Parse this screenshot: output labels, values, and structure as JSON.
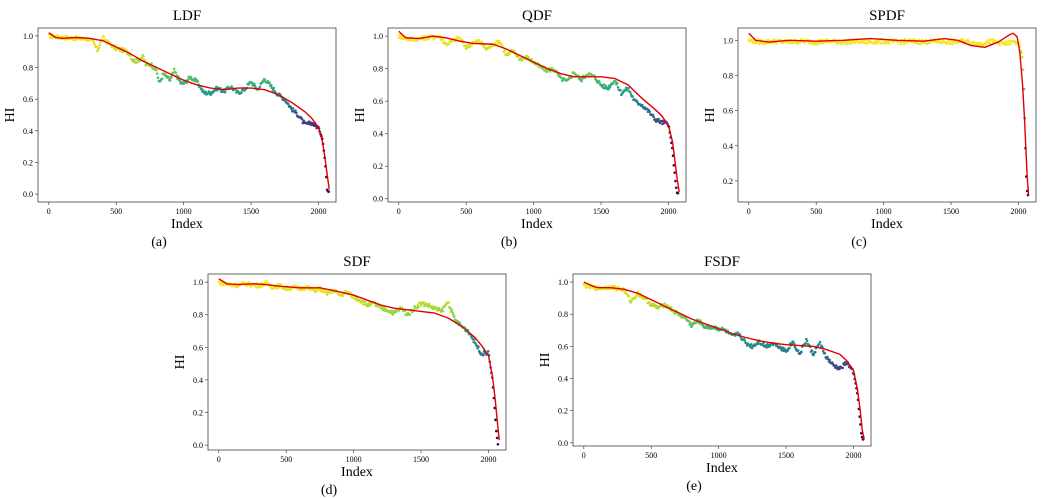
{
  "chart_data": [
    {
      "type": "scatter",
      "title": "LDF",
      "caption": "(a)",
      "xlabel": "Index",
      "ylabel": "HI",
      "xlim": [
        -80,
        2130
      ],
      "ylim": [
        -0.05,
        1.05
      ],
      "xticks": [
        0,
        500,
        1000,
        1500,
        2000
      ],
      "yticks": [
        0.0,
        0.2,
        0.4,
        0.6,
        0.8,
        1.0
      ],
      "fit_curve": [
        [
          0,
          1.02
        ],
        [
          50,
          0.99
        ],
        [
          100,
          0.985
        ],
        [
          200,
          0.99
        ],
        [
          300,
          0.985
        ],
        [
          400,
          0.97
        ],
        [
          500,
          0.93
        ],
        [
          600,
          0.89
        ],
        [
          700,
          0.84
        ],
        [
          800,
          0.8
        ],
        [
          900,
          0.76
        ],
        [
          1000,
          0.72
        ],
        [
          1100,
          0.69
        ],
        [
          1200,
          0.67
        ],
        [
          1300,
          0.66
        ],
        [
          1400,
          0.67
        ],
        [
          1500,
          0.67
        ],
        [
          1600,
          0.66
        ],
        [
          1700,
          0.63
        ],
        [
          1800,
          0.58
        ],
        [
          1900,
          0.52
        ],
        [
          1950,
          0.48
        ],
        [
          2000,
          0.42
        ],
        [
          2030,
          0.33
        ],
        [
          2050,
          0.22
        ],
        [
          2065,
          0.12
        ],
        [
          2080,
          0.03
        ]
      ],
      "data_points": [
        [
          0,
          1.0
        ],
        [
          100,
          0.99
        ],
        [
          200,
          0.985
        ],
        [
          300,
          0.98
        ],
        [
          330,
          0.96
        ],
        [
          360,
          0.91
        ],
        [
          400,
          0.99
        ],
        [
          450,
          0.95
        ],
        [
          500,
          0.92
        ],
        [
          550,
          0.91
        ],
        [
          600,
          0.89
        ],
        [
          620,
          0.85
        ],
        [
          650,
          0.84
        ],
        [
          700,
          0.87
        ],
        [
          720,
          0.82
        ],
        [
          760,
          0.82
        ],
        [
          800,
          0.78
        ],
        [
          820,
          0.7
        ],
        [
          850,
          0.76
        ],
        [
          900,
          0.72
        ],
        [
          930,
          0.78
        ],
        [
          980,
          0.7
        ],
        [
          1000,
          0.7
        ],
        [
          1050,
          0.74
        ],
        [
          1100,
          0.71
        ],
        [
          1150,
          0.64
        ],
        [
          1200,
          0.64
        ],
        [
          1250,
          0.67
        ],
        [
          1300,
          0.65
        ],
        [
          1350,
          0.68
        ],
        [
          1400,
          0.64
        ],
        [
          1450,
          0.66
        ],
        [
          1500,
          0.71
        ],
        [
          1550,
          0.66
        ],
        [
          1600,
          0.73
        ],
        [
          1650,
          0.68
        ],
        [
          1700,
          0.63
        ],
        [
          1750,
          0.6
        ],
        [
          1800,
          0.54
        ],
        [
          1850,
          0.5
        ],
        [
          1900,
          0.44
        ],
        [
          1950,
          0.45
        ],
        [
          2000,
          0.42
        ],
        [
          2030,
          0.35
        ],
        [
          2050,
          0.2
        ],
        [
          2060,
          0.08
        ],
        [
          2065,
          0.02
        ],
        [
          2080,
          0.02
        ]
      ]
    },
    {
      "type": "scatter",
      "title": "QDF",
      "caption": "(b)",
      "xlabel": "Index",
      "ylabel": "HI",
      "xlim": [
        -80,
        2130
      ],
      "ylim": [
        -0.02,
        1.05
      ],
      "xticks": [
        0,
        500,
        1000,
        1500,
        2000
      ],
      "yticks": [
        0.0,
        0.2,
        0.4,
        0.6,
        0.8,
        1.0
      ],
      "fit_curve": [
        [
          0,
          1.03
        ],
        [
          50,
          0.99
        ],
        [
          150,
          0.985
        ],
        [
          250,
          1.0
        ],
        [
          350,
          0.99
        ],
        [
          450,
          0.97
        ],
        [
          550,
          0.955
        ],
        [
          700,
          0.95
        ],
        [
          800,
          0.92
        ],
        [
          900,
          0.88
        ],
        [
          1000,
          0.84
        ],
        [
          1100,
          0.8
        ],
        [
          1200,
          0.77
        ],
        [
          1300,
          0.75
        ],
        [
          1400,
          0.75
        ],
        [
          1500,
          0.75
        ],
        [
          1600,
          0.74
        ],
        [
          1700,
          0.7
        ],
        [
          1800,
          0.62
        ],
        [
          1900,
          0.55
        ],
        [
          1950,
          0.51
        ],
        [
          2000,
          0.45
        ],
        [
          2030,
          0.35
        ],
        [
          2050,
          0.22
        ],
        [
          2065,
          0.12
        ],
        [
          2080,
          0.04
        ]
      ],
      "data_points": [
        [
          0,
          1.0
        ],
        [
          100,
          0.98
        ],
        [
          200,
          0.99
        ],
        [
          300,
          1.0
        ],
        [
          350,
          0.95
        ],
        [
          400,
          0.97
        ],
        [
          450,
          0.99
        ],
        [
          500,
          0.93
        ],
        [
          550,
          0.96
        ],
        [
          600,
          0.97
        ],
        [
          650,
          0.92
        ],
        [
          700,
          0.95
        ],
        [
          750,
          0.97
        ],
        [
          800,
          0.88
        ],
        [
          850,
          0.91
        ],
        [
          900,
          0.86
        ],
        [
          950,
          0.87
        ],
        [
          1000,
          0.84
        ],
        [
          1050,
          0.81
        ],
        [
          1100,
          0.79
        ],
        [
          1150,
          0.8
        ],
        [
          1200,
          0.74
        ],
        [
          1250,
          0.72
        ],
        [
          1300,
          0.78
        ],
        [
          1350,
          0.73
        ],
        [
          1400,
          0.77
        ],
        [
          1450,
          0.75
        ],
        [
          1500,
          0.7
        ],
        [
          1550,
          0.68
        ],
        [
          1600,
          0.73
        ],
        [
          1650,
          0.65
        ],
        [
          1700,
          0.68
        ],
        [
          1750,
          0.6
        ],
        [
          1800,
          0.58
        ],
        [
          1850,
          0.54
        ],
        [
          1900,
          0.49
        ],
        [
          1950,
          0.47
        ],
        [
          2000,
          0.46
        ],
        [
          2030,
          0.3
        ],
        [
          2050,
          0.12
        ],
        [
          2060,
          0.05
        ],
        [
          2070,
          0.03
        ]
      ]
    },
    {
      "type": "scatter",
      "title": "SPDF",
      "caption": "(c)",
      "xlabel": "Index",
      "ylabel": "HI",
      "xlim": [
        -80,
        2130
      ],
      "ylim": [
        0.08,
        1.07
      ],
      "xticks": [
        0,
        500,
        1000,
        1500,
        2000
      ],
      "yticks": [
        0.2,
        0.4,
        0.6,
        0.8,
        1.0
      ],
      "fit_curve": [
        [
          0,
          1.04
        ],
        [
          50,
          1.0
        ],
        [
          150,
          0.99
        ],
        [
          300,
          1.0
        ],
        [
          500,
          0.995
        ],
        [
          700,
          1.0
        ],
        [
          900,
          1.01
        ],
        [
          1100,
          1.0
        ],
        [
          1300,
          0.995
        ],
        [
          1450,
          1.01
        ],
        [
          1550,
          1.0
        ],
        [
          1650,
          0.97
        ],
        [
          1750,
          0.96
        ],
        [
          1850,
          0.99
        ],
        [
          1930,
          1.03
        ],
        [
          1960,
          1.04
        ],
        [
          1990,
          1.02
        ],
        [
          2010,
          0.93
        ],
        [
          2030,
          0.75
        ],
        [
          2045,
          0.55
        ],
        [
          2055,
          0.38
        ],
        [
          2065,
          0.22
        ],
        [
          2075,
          0.12
        ]
      ],
      "data_points": [
        [
          0,
          1.0
        ],
        [
          100,
          0.99
        ],
        [
          200,
          0.995
        ],
        [
          300,
          0.99
        ],
        [
          400,
          0.995
        ],
        [
          500,
          0.99
        ],
        [
          600,
          0.995
        ],
        [
          700,
          0.99
        ],
        [
          800,
          0.995
        ],
        [
          900,
          0.99
        ],
        [
          1000,
          0.995
        ],
        [
          1100,
          0.99
        ],
        [
          1200,
          0.995
        ],
        [
          1300,
          0.99
        ],
        [
          1400,
          0.995
        ],
        [
          1500,
          0.99
        ],
        [
          1600,
          0.995
        ],
        [
          1700,
          0.98
        ],
        [
          1800,
          0.995
        ],
        [
          1900,
          0.98
        ],
        [
          1950,
          0.99
        ],
        [
          2000,
          0.99
        ],
        [
          2030,
          0.9
        ],
        [
          2040,
          0.72
        ],
        [
          2050,
          0.45
        ],
        [
          2055,
          0.3
        ],
        [
          2060,
          0.17
        ],
        [
          2065,
          0.13
        ],
        [
          2070,
          0.12
        ]
      ]
    },
    {
      "type": "scatter",
      "title": "SDF",
      "caption": "(d)",
      "xlabel": "Index",
      "ylabel": "HI",
      "xlim": [
        -80,
        2130
      ],
      "ylim": [
        -0.03,
        1.05
      ],
      "xticks": [
        0,
        500,
        1000,
        1500,
        2000
      ],
      "yticks": [
        0.0,
        0.2,
        0.4,
        0.6,
        0.8,
        1.0
      ],
      "fit_curve": [
        [
          0,
          1.02
        ],
        [
          60,
          0.99
        ],
        [
          150,
          0.985
        ],
        [
          250,
          0.99
        ],
        [
          350,
          0.985
        ],
        [
          450,
          0.975
        ],
        [
          600,
          0.965
        ],
        [
          750,
          0.965
        ],
        [
          900,
          0.94
        ],
        [
          1000,
          0.92
        ],
        [
          1100,
          0.89
        ],
        [
          1200,
          0.86
        ],
        [
          1300,
          0.84
        ],
        [
          1400,
          0.83
        ],
        [
          1500,
          0.82
        ],
        [
          1600,
          0.81
        ],
        [
          1700,
          0.78
        ],
        [
          1800,
          0.73
        ],
        [
          1900,
          0.66
        ],
        [
          1950,
          0.61
        ],
        [
          2000,
          0.55
        ],
        [
          2030,
          0.42
        ],
        [
          2050,
          0.28
        ],
        [
          2065,
          0.15
        ],
        [
          2080,
          0.03
        ]
      ],
      "data_points": [
        [
          0,
          1.0
        ],
        [
          100,
          0.98
        ],
        [
          200,
          0.99
        ],
        [
          300,
          0.98
        ],
        [
          350,
          0.995
        ],
        [
          400,
          0.97
        ],
        [
          450,
          0.98
        ],
        [
          500,
          0.96
        ],
        [
          550,
          0.97
        ],
        [
          600,
          0.96
        ],
        [
          650,
          0.97
        ],
        [
          700,
          0.95
        ],
        [
          750,
          0.96
        ],
        [
          800,
          0.93
        ],
        [
          850,
          0.95
        ],
        [
          900,
          0.92
        ],
        [
          950,
          0.94
        ],
        [
          1000,
          0.91
        ],
        [
          1050,
          0.89
        ],
        [
          1100,
          0.86
        ],
        [
          1150,
          0.87
        ],
        [
          1200,
          0.84
        ],
        [
          1250,
          0.83
        ],
        [
          1300,
          0.81
        ],
        [
          1350,
          0.84
        ],
        [
          1400,
          0.8
        ],
        [
          1450,
          0.84
        ],
        [
          1500,
          0.87
        ],
        [
          1550,
          0.86
        ],
        [
          1600,
          0.84
        ],
        [
          1650,
          0.82
        ],
        [
          1700,
          0.88
        ],
        [
          1750,
          0.77
        ],
        [
          1800,
          0.73
        ],
        [
          1850,
          0.7
        ],
        [
          1900,
          0.63
        ],
        [
          1950,
          0.56
        ],
        [
          2000,
          0.57
        ],
        [
          2030,
          0.4
        ],
        [
          2050,
          0.18
        ],
        [
          2060,
          0.06
        ],
        [
          2070,
          0.01
        ]
      ]
    },
    {
      "type": "scatter",
      "title": "FSDF",
      "caption": "(e)",
      "xlabel": "Index",
      "ylabel": "HI",
      "xlim": [
        -80,
        2130
      ],
      "ylim": [
        -0.02,
        1.05
      ],
      "xticks": [
        0,
        500,
        1000,
        1500,
        2000
      ],
      "yticks": [
        0.0,
        0.2,
        0.4,
        0.6,
        0.8,
        1.0
      ],
      "fit_curve": [
        [
          0,
          1.0
        ],
        [
          50,
          0.98
        ],
        [
          100,
          0.965
        ],
        [
          200,
          0.965
        ],
        [
          300,
          0.955
        ],
        [
          400,
          0.93
        ],
        [
          500,
          0.89
        ],
        [
          600,
          0.85
        ],
        [
          700,
          0.81
        ],
        [
          800,
          0.77
        ],
        [
          900,
          0.74
        ],
        [
          1000,
          0.71
        ],
        [
          1100,
          0.68
        ],
        [
          1200,
          0.655
        ],
        [
          1300,
          0.635
        ],
        [
          1400,
          0.62
        ],
        [
          1500,
          0.61
        ],
        [
          1600,
          0.605
        ],
        [
          1700,
          0.6
        ],
        [
          1800,
          0.58
        ],
        [
          1900,
          0.55
        ],
        [
          1950,
          0.51
        ],
        [
          2000,
          0.45
        ],
        [
          2030,
          0.33
        ],
        [
          2050,
          0.2
        ],
        [
          2065,
          0.08
        ],
        [
          2080,
          0.02
        ]
      ],
      "data_points": [
        [
          0,
          0.98
        ],
        [
          100,
          0.96
        ],
        [
          200,
          0.97
        ],
        [
          300,
          0.95
        ],
        [
          350,
          0.88
        ],
        [
          400,
          0.93
        ],
        [
          450,
          0.9
        ],
        [
          500,
          0.86
        ],
        [
          550,
          0.84
        ],
        [
          600,
          0.86
        ],
        [
          650,
          0.83
        ],
        [
          700,
          0.8
        ],
        [
          750,
          0.78
        ],
        [
          800,
          0.73
        ],
        [
          850,
          0.76
        ],
        [
          900,
          0.72
        ],
        [
          950,
          0.72
        ],
        [
          1000,
          0.71
        ],
        [
          1050,
          0.7
        ],
        [
          1100,
          0.66
        ],
        [
          1150,
          0.68
        ],
        [
          1200,
          0.62
        ],
        [
          1250,
          0.6
        ],
        [
          1300,
          0.63
        ],
        [
          1350,
          0.6
        ],
        [
          1400,
          0.62
        ],
        [
          1450,
          0.6
        ],
        [
          1500,
          0.57
        ],
        [
          1550,
          0.63
        ],
        [
          1600,
          0.55
        ],
        [
          1650,
          0.64
        ],
        [
          1700,
          0.55
        ],
        [
          1750,
          0.62
        ],
        [
          1800,
          0.53
        ],
        [
          1850,
          0.48
        ],
        [
          1900,
          0.46
        ],
        [
          1950,
          0.5
        ],
        [
          2000,
          0.44
        ],
        [
          2030,
          0.3
        ],
        [
          2050,
          0.13
        ],
        [
          2060,
          0.04
        ],
        [
          2070,
          0.02
        ]
      ]
    }
  ],
  "colors": {
    "fit_line": "#e00000",
    "frame": "#444444",
    "gradient": [
      "#fde725",
      "#c8e020",
      "#7ad151",
      "#22a884",
      "#2a788e",
      "#414487",
      "#440154"
    ]
  }
}
